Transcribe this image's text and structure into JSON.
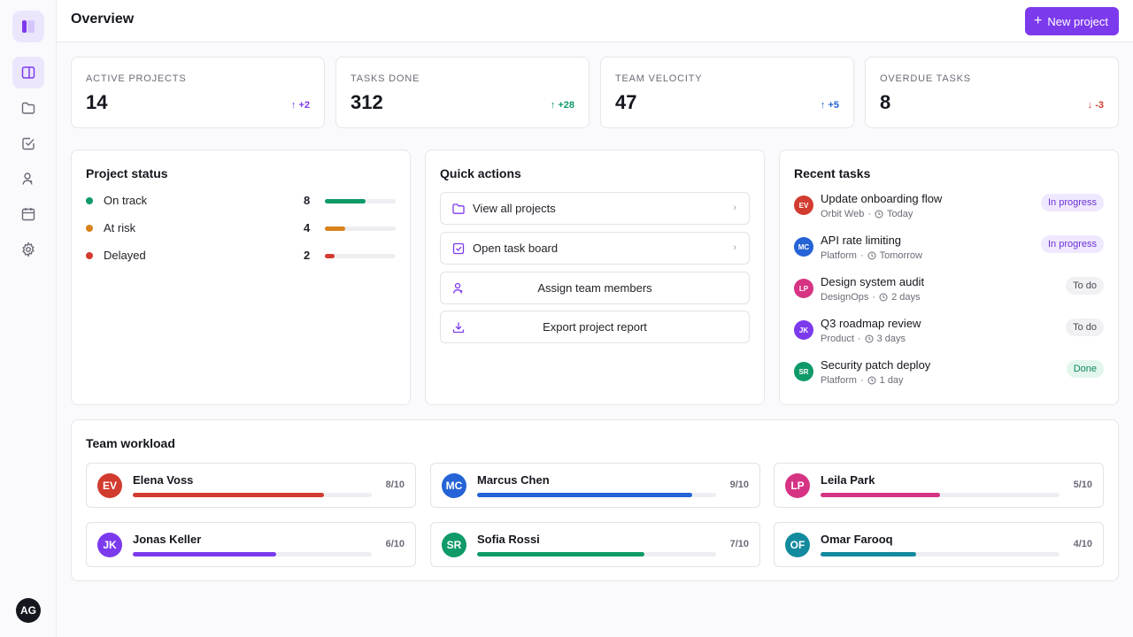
{
  "header": {
    "title": "Overview",
    "new_project_label": "New project"
  },
  "sidebar": {
    "items": [
      {
        "name": "sidebar-item-overview",
        "icon": "layout-icon",
        "active": true
      },
      {
        "name": "sidebar-item-projects",
        "icon": "folder-icon",
        "active": false
      },
      {
        "name": "sidebar-item-tasks",
        "icon": "checkbox-icon",
        "active": false
      },
      {
        "name": "sidebar-item-team",
        "icon": "user-icon",
        "active": false
      },
      {
        "name": "sidebar-item-calendar",
        "icon": "calendar-icon",
        "active": false
      },
      {
        "name": "sidebar-item-settings",
        "icon": "gear-icon",
        "active": false
      }
    ],
    "user_initials": "AG"
  },
  "stats": [
    {
      "label": "ACTIVE PROJECTS",
      "value": "14",
      "delta": "+2",
      "direction": "up",
      "color": "#7c3aed"
    },
    {
      "label": "TASKS DONE",
      "value": "312",
      "delta": "+28",
      "direction": "up",
      "color": "#0f9a68"
    },
    {
      "label": "TEAM VELOCITY",
      "value": "47",
      "delta": "+5",
      "direction": "up",
      "color": "#2563d6"
    },
    {
      "label": "OVERDUE TASKS",
      "value": "8",
      "delta": "-3",
      "direction": "down",
      "color": "#d23b2f"
    }
  ],
  "project_status": {
    "title": "Project status",
    "rows": [
      {
        "label": "On track",
        "count": "8",
        "fraction": 0.58,
        "color": "#0f9a68"
      },
      {
        "label": "At risk",
        "count": "4",
        "fraction": 0.29,
        "color": "#d9821a"
      },
      {
        "label": "Delayed",
        "count": "2",
        "fraction": 0.14,
        "color": "#d23b2f"
      }
    ]
  },
  "quick_actions": {
    "title": "Quick actions",
    "items": [
      {
        "label": "View all projects",
        "icon": "folder-icon",
        "chevron": "›"
      },
      {
        "label": "Open task board",
        "icon": "checkbox-icon",
        "chevron": "›"
      },
      {
        "label": "Assign team members",
        "icon": "user-icon"
      },
      {
        "label": "Export project report",
        "icon": "download-icon"
      }
    ]
  },
  "recent_tasks": {
    "title": "Recent tasks",
    "items": [
      {
        "initials": "EV",
        "avatar_color": "#d23b2f",
        "title": "Update onboarding flow",
        "project": "Orbit Web",
        "due": "Today",
        "status": "In progress",
        "badge_bg": "#efe8fe",
        "badge_fg": "#6d33d6"
      },
      {
        "initials": "MC",
        "avatar_color": "#2563d6",
        "title": "API rate limiting",
        "project": "Platform",
        "due": "Tomorrow",
        "status": "In progress",
        "badge_bg": "#efe8fe",
        "badge_fg": "#6d33d6"
      },
      {
        "initials": "LP",
        "avatar_color": "#d63384",
        "title": "Design system audit",
        "project": "DesignOps",
        "due": "2 days",
        "status": "To do",
        "badge_bg": "#f1f1f4",
        "badge_fg": "#4a4a55"
      },
      {
        "initials": "JK",
        "avatar_color": "#7c3aed",
        "title": "Q3 roadmap review",
        "project": "Product",
        "due": "3 days",
        "status": "To do",
        "badge_bg": "#f1f1f4",
        "badge_fg": "#4a4a55"
      },
      {
        "initials": "SR",
        "avatar_color": "#0f9a68",
        "title": "Security patch deploy",
        "project": "Platform",
        "due": "1 day",
        "status": "Done",
        "badge_bg": "#e3f6ec",
        "badge_fg": "#0d8a5c"
      }
    ],
    "separator": "·"
  },
  "team_workload": {
    "title": "Team workload",
    "members": [
      {
        "initials": "EV",
        "name": "Elena Voss",
        "load": "8/10",
        "fraction": 0.8,
        "color": "#d23b2f"
      },
      {
        "initials": "MC",
        "name": "Marcus Chen",
        "load": "9/10",
        "fraction": 0.9,
        "color": "#2563d6"
      },
      {
        "initials": "LP",
        "name": "Leila Park",
        "load": "5/10",
        "fraction": 0.5,
        "color": "#d63384"
      },
      {
        "initials": "JK",
        "name": "Jonas Keller",
        "load": "6/10",
        "fraction": 0.6,
        "color": "#7c3aed"
      },
      {
        "initials": "SR",
        "name": "Sofia Rossi",
        "load": "7/10",
        "fraction": 0.7,
        "color": "#0f9a68"
      },
      {
        "initials": "OF",
        "name": "Omar Farooq",
        "load": "4/10",
        "fraction": 0.4,
        "color": "#138a9e"
      }
    ]
  }
}
